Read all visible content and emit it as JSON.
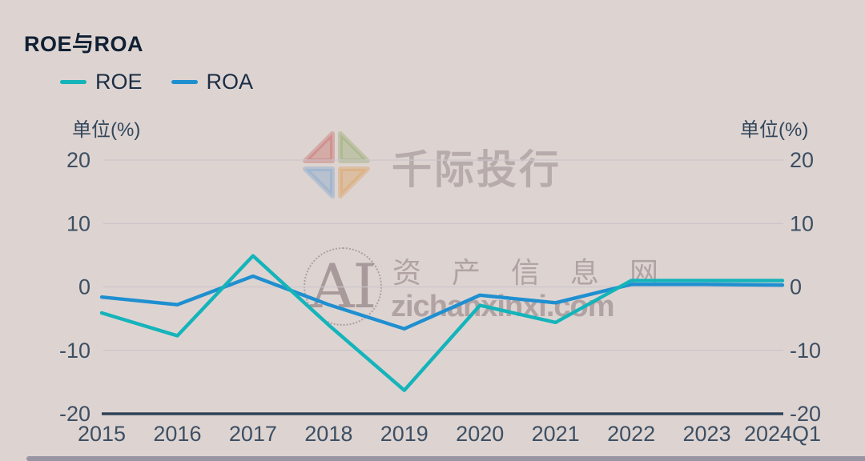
{
  "title": "ROE与ROA",
  "watermark": {
    "brand_text": "千际投行",
    "ai_text": "AI",
    "site_name": "资 产 信 息 网",
    "site_url": "zichanxinxi.com"
  },
  "colors": {
    "background": "#DDD4D1",
    "title_text": "#101F33",
    "tick_text": "#3D4F63",
    "axis_line": "#2E4257",
    "gridline": "#CCC4CB",
    "scrollbar": "#9A95A3"
  },
  "chart_data": {
    "type": "line",
    "title": "ROE与ROA",
    "categories": [
      "2015",
      "2016",
      "2017",
      "2018",
      "2019",
      "2020",
      "2021",
      "2022",
      "2023",
      "2024Q1"
    ],
    "series": [
      {
        "name": "ROE",
        "color": "#14B4BA",
        "values": [
          -4.1,
          -7.7,
          4.9,
          -6.0,
          -16.3,
          -2.9,
          -5.6,
          1.0,
          1.0,
          1.0
        ]
      },
      {
        "name": "ROA",
        "color": "#1F8FD0",
        "values": [
          -1.6,
          -2.8,
          1.7,
          -2.8,
          -6.6,
          -1.3,
          -2.5,
          0.4,
          0.4,
          0.3
        ]
      }
    ],
    "xlabel": "",
    "ylabel": "单位(%)",
    "ylim": [
      -20,
      20
    ],
    "y_ticks": [
      20,
      10,
      0,
      -10,
      -20
    ],
    "grid": true,
    "legend_position": "top-left",
    "y_axis_sides": "both"
  }
}
